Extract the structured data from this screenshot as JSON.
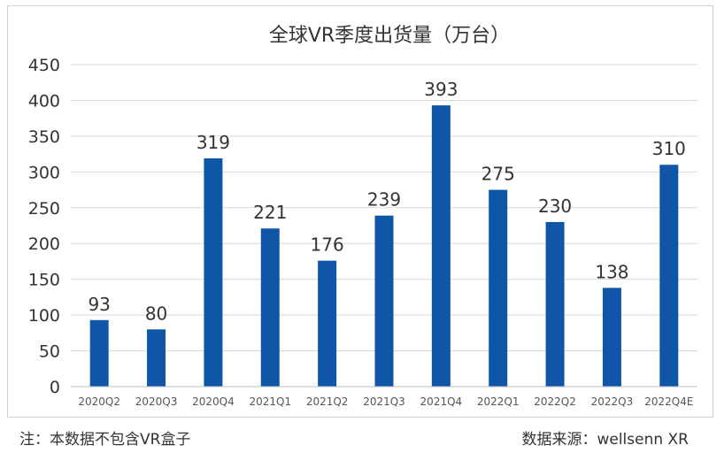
{
  "chart_data": {
    "type": "bar",
    "title": "全球VR季度出货量（万台）",
    "categories": [
      "2020Q2",
      "2020Q3",
      "2020Q4",
      "2021Q1",
      "2021Q2",
      "2021Q3",
      "2021Q4",
      "2022Q1",
      "2022Q2",
      "2022Q3",
      "2022Q4E"
    ],
    "values": [
      93,
      80,
      319,
      221,
      176,
      239,
      393,
      275,
      230,
      138,
      310
    ],
    "ylim": [
      0,
      450
    ],
    "yticks": [
      0,
      50,
      100,
      150,
      200,
      250,
      300,
      350,
      400,
      450
    ],
    "grid": true,
    "bar_color": "#0f56a8"
  },
  "footer": {
    "note": "注：本数据不包含VR盒子",
    "source": "数据来源：wellsenn XR"
  }
}
